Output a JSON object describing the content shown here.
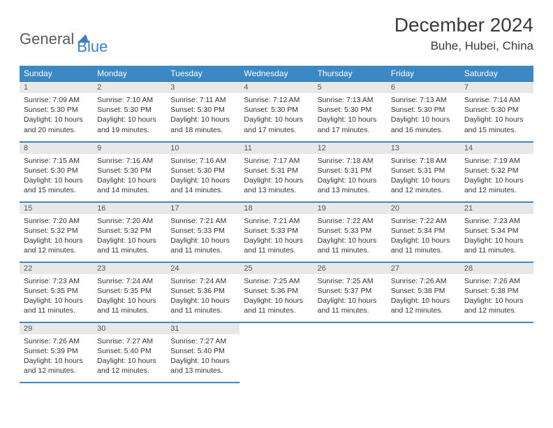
{
  "logo": {
    "text1": "General",
    "text2": "Blue"
  },
  "title": "December 2024",
  "subtitle": "Buhe, Hubei, China",
  "colors": {
    "header_bg": "#3b88c4",
    "header_fg": "#ffffff",
    "daynum_bg": "#e8e8e8",
    "daynum_fg": "#555555",
    "row_border": "#3b88c4",
    "body_fg": "#333333",
    "logo_gray": "#5a5a5a",
    "logo_blue": "#3b7fc4",
    "page_bg": "#ffffff"
  },
  "typography": {
    "title_fontsize": 28,
    "subtitle_fontsize": 17,
    "header_fontsize": 12,
    "cell_fontsize": 10.5,
    "logo_fontsize": 22
  },
  "weekdays": [
    "Sunday",
    "Monday",
    "Tuesday",
    "Wednesday",
    "Thursday",
    "Friday",
    "Saturday"
  ],
  "weeks": [
    [
      {
        "day": "1",
        "sunrise": "Sunrise: 7:09 AM",
        "sunset": "Sunset: 5:30 PM",
        "daylight": "Daylight: 10 hours and 20 minutes."
      },
      {
        "day": "2",
        "sunrise": "Sunrise: 7:10 AM",
        "sunset": "Sunset: 5:30 PM",
        "daylight": "Daylight: 10 hours and 19 minutes."
      },
      {
        "day": "3",
        "sunrise": "Sunrise: 7:11 AM",
        "sunset": "Sunset: 5:30 PM",
        "daylight": "Daylight: 10 hours and 18 minutes."
      },
      {
        "day": "4",
        "sunrise": "Sunrise: 7:12 AM",
        "sunset": "Sunset: 5:30 PM",
        "daylight": "Daylight: 10 hours and 17 minutes."
      },
      {
        "day": "5",
        "sunrise": "Sunrise: 7:13 AM",
        "sunset": "Sunset: 5:30 PM",
        "daylight": "Daylight: 10 hours and 17 minutes."
      },
      {
        "day": "6",
        "sunrise": "Sunrise: 7:13 AM",
        "sunset": "Sunset: 5:30 PM",
        "daylight": "Daylight: 10 hours and 16 minutes."
      },
      {
        "day": "7",
        "sunrise": "Sunrise: 7:14 AM",
        "sunset": "Sunset: 5:30 PM",
        "daylight": "Daylight: 10 hours and 15 minutes."
      }
    ],
    [
      {
        "day": "8",
        "sunrise": "Sunrise: 7:15 AM",
        "sunset": "Sunset: 5:30 PM",
        "daylight": "Daylight: 10 hours and 15 minutes."
      },
      {
        "day": "9",
        "sunrise": "Sunrise: 7:16 AM",
        "sunset": "Sunset: 5:30 PM",
        "daylight": "Daylight: 10 hours and 14 minutes."
      },
      {
        "day": "10",
        "sunrise": "Sunrise: 7:16 AM",
        "sunset": "Sunset: 5:30 PM",
        "daylight": "Daylight: 10 hours and 14 minutes."
      },
      {
        "day": "11",
        "sunrise": "Sunrise: 7:17 AM",
        "sunset": "Sunset: 5:31 PM",
        "daylight": "Daylight: 10 hours and 13 minutes."
      },
      {
        "day": "12",
        "sunrise": "Sunrise: 7:18 AM",
        "sunset": "Sunset: 5:31 PM",
        "daylight": "Daylight: 10 hours and 13 minutes."
      },
      {
        "day": "13",
        "sunrise": "Sunrise: 7:18 AM",
        "sunset": "Sunset: 5:31 PM",
        "daylight": "Daylight: 10 hours and 12 minutes."
      },
      {
        "day": "14",
        "sunrise": "Sunrise: 7:19 AM",
        "sunset": "Sunset: 5:32 PM",
        "daylight": "Daylight: 10 hours and 12 minutes."
      }
    ],
    [
      {
        "day": "15",
        "sunrise": "Sunrise: 7:20 AM",
        "sunset": "Sunset: 5:32 PM",
        "daylight": "Daylight: 10 hours and 12 minutes."
      },
      {
        "day": "16",
        "sunrise": "Sunrise: 7:20 AM",
        "sunset": "Sunset: 5:32 PM",
        "daylight": "Daylight: 10 hours and 11 minutes."
      },
      {
        "day": "17",
        "sunrise": "Sunrise: 7:21 AM",
        "sunset": "Sunset: 5:33 PM",
        "daylight": "Daylight: 10 hours and 11 minutes."
      },
      {
        "day": "18",
        "sunrise": "Sunrise: 7:21 AM",
        "sunset": "Sunset: 5:33 PM",
        "daylight": "Daylight: 10 hours and 11 minutes."
      },
      {
        "day": "19",
        "sunrise": "Sunrise: 7:22 AM",
        "sunset": "Sunset: 5:33 PM",
        "daylight": "Daylight: 10 hours and 11 minutes."
      },
      {
        "day": "20",
        "sunrise": "Sunrise: 7:22 AM",
        "sunset": "Sunset: 5:34 PM",
        "daylight": "Daylight: 10 hours and 11 minutes."
      },
      {
        "day": "21",
        "sunrise": "Sunrise: 7:23 AM",
        "sunset": "Sunset: 5:34 PM",
        "daylight": "Daylight: 10 hours and 11 minutes."
      }
    ],
    [
      {
        "day": "22",
        "sunrise": "Sunrise: 7:23 AM",
        "sunset": "Sunset: 5:35 PM",
        "daylight": "Daylight: 10 hours and 11 minutes."
      },
      {
        "day": "23",
        "sunrise": "Sunrise: 7:24 AM",
        "sunset": "Sunset: 5:35 PM",
        "daylight": "Daylight: 10 hours and 11 minutes."
      },
      {
        "day": "24",
        "sunrise": "Sunrise: 7:24 AM",
        "sunset": "Sunset: 5:36 PM",
        "daylight": "Daylight: 10 hours and 11 minutes."
      },
      {
        "day": "25",
        "sunrise": "Sunrise: 7:25 AM",
        "sunset": "Sunset: 5:36 PM",
        "daylight": "Daylight: 10 hours and 11 minutes."
      },
      {
        "day": "26",
        "sunrise": "Sunrise: 7:25 AM",
        "sunset": "Sunset: 5:37 PM",
        "daylight": "Daylight: 10 hours and 11 minutes."
      },
      {
        "day": "27",
        "sunrise": "Sunrise: 7:26 AM",
        "sunset": "Sunset: 5:38 PM",
        "daylight": "Daylight: 10 hours and 12 minutes."
      },
      {
        "day": "28",
        "sunrise": "Sunrise: 7:26 AM",
        "sunset": "Sunset: 5:38 PM",
        "daylight": "Daylight: 10 hours and 12 minutes."
      }
    ],
    [
      {
        "day": "29",
        "sunrise": "Sunrise: 7:26 AM",
        "sunset": "Sunset: 5:39 PM",
        "daylight": "Daylight: 10 hours and 12 minutes."
      },
      {
        "day": "30",
        "sunrise": "Sunrise: 7:27 AM",
        "sunset": "Sunset: 5:40 PM",
        "daylight": "Daylight: 10 hours and 12 minutes."
      },
      {
        "day": "31",
        "sunrise": "Sunrise: 7:27 AM",
        "sunset": "Sunset: 5:40 PM",
        "daylight": "Daylight: 10 hours and 13 minutes."
      },
      null,
      null,
      null,
      null
    ]
  ]
}
